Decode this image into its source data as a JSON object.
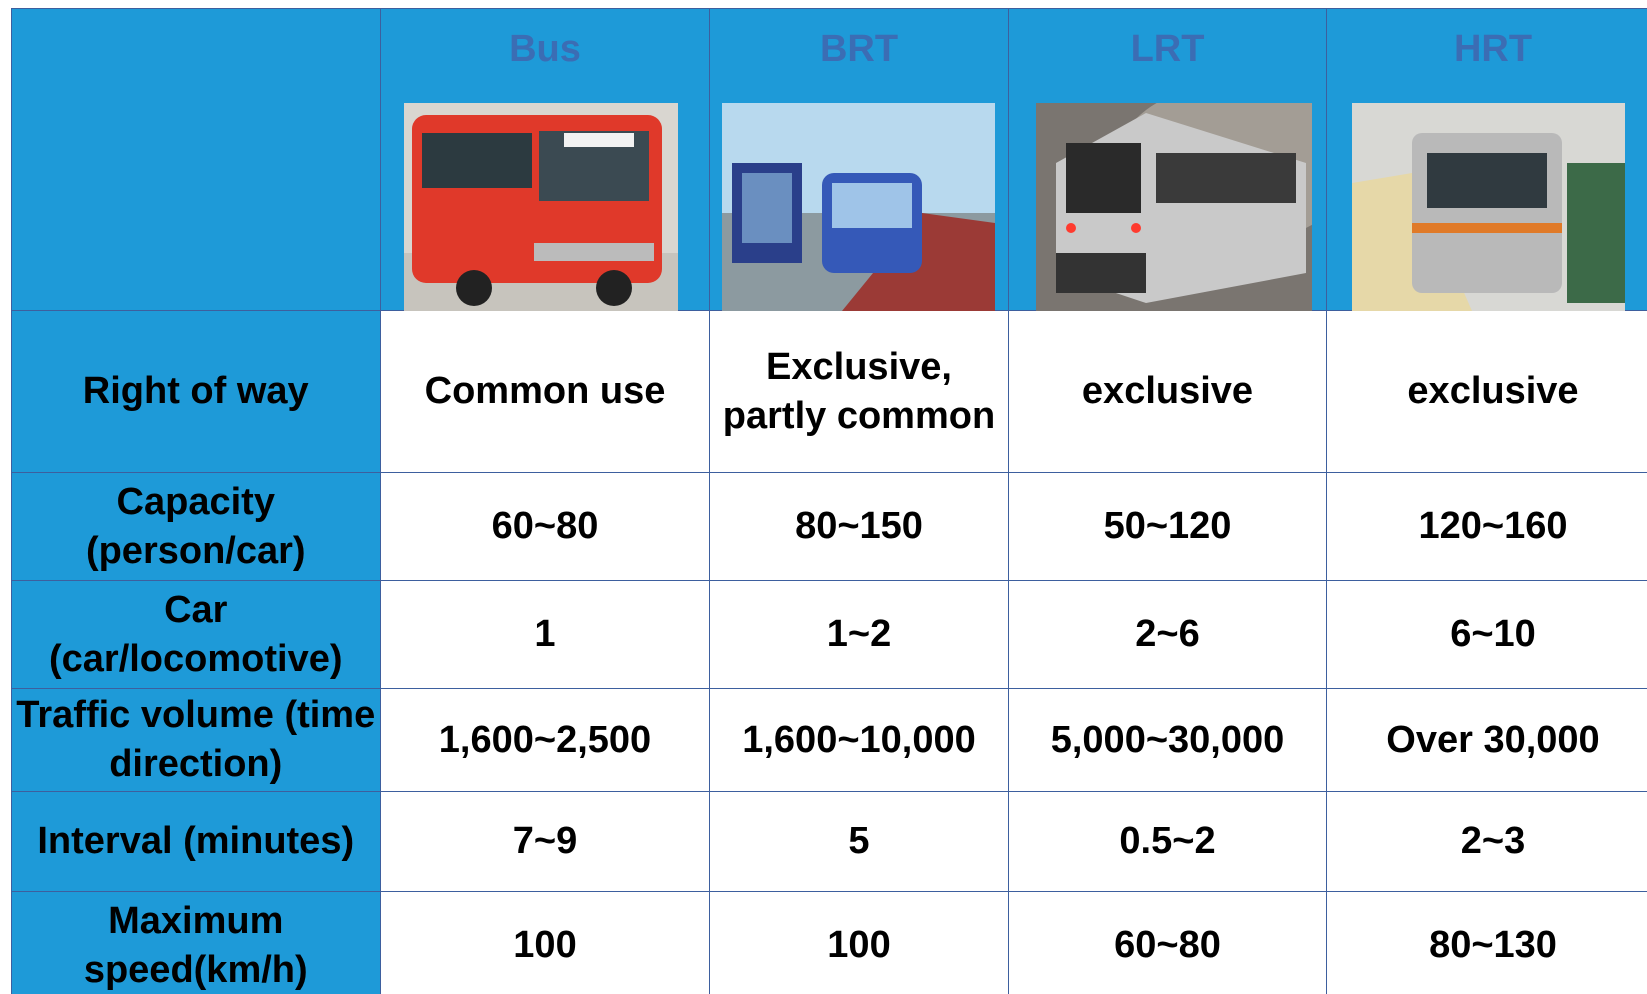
{
  "header": {
    "columns": [
      "Bus",
      "BRT",
      "LRT",
      "HRT"
    ]
  },
  "table": {
    "rows": [
      {
        "label": "Right of way",
        "cells": [
          "Common use",
          "Exclusive, partly common",
          "exclusive",
          "exclusive"
        ]
      },
      {
        "label": "Capacity (person/car)",
        "cells": [
          "60~80",
          "80~150",
          "50~120",
          "120~160"
        ]
      },
      {
        "label": "Car (car/locomotive)",
        "cells": [
          "1",
          "1~2",
          "2~6",
          "6~10"
        ]
      },
      {
        "label": "Traffic volume (time direction)",
        "cells": [
          "1,600~2,500",
          "1,600~10,000",
          "5,000~30,000",
          "Over 30,000"
        ]
      },
      {
        "label": "Interval (minutes)",
        "cells": [
          "7~9",
          "5",
          "0.5~2",
          "2~3"
        ]
      },
      {
        "label": "Maximum speed(km/h)",
        "cells": [
          "100",
          "100",
          "60~80",
          "80~130"
        ]
      }
    ]
  }
}
